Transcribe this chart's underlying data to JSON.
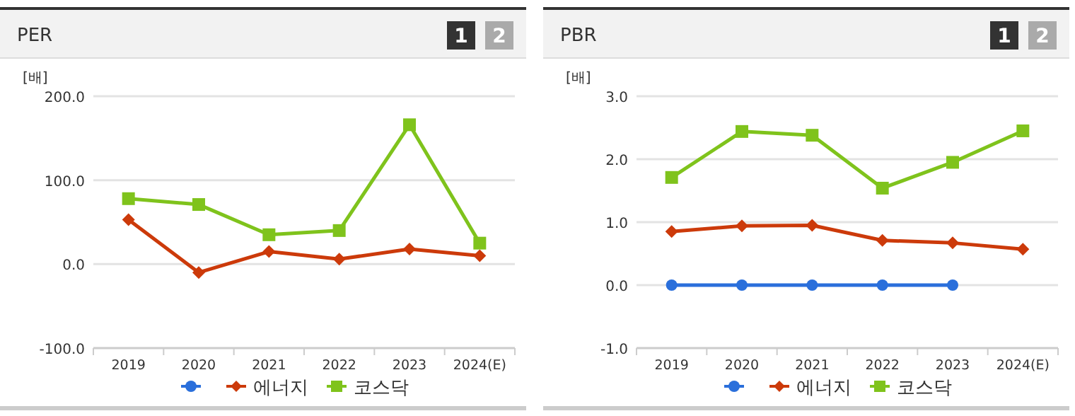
{
  "chart_data": [
    {
      "type": "line",
      "title": "PER",
      "ylabel": "[배]",
      "annotations": [
        "1",
        "2"
      ],
      "categories": [
        "2019",
        "2020",
        "2021",
        "2022",
        "2023",
        "2024(E)"
      ],
      "ylim": [
        -100,
        200
      ],
      "yticks": [
        {
          "value": -100,
          "label": "-100.0"
        },
        {
          "value": 0,
          "label": "0.0"
        },
        {
          "value": 100,
          "label": "100.0"
        },
        {
          "value": 200,
          "label": "200.0"
        }
      ],
      "grid": "y",
      "legend": "bottom",
      "series": [
        {
          "color": "#2a6fdb",
          "marker": "circle",
          "values": [
            null,
            null,
            null,
            null,
            null,
            null
          ]
        },
        {
          "name": "에너지",
          "color": "#cc3a0a",
          "marker": "diamond",
          "values": [
            53,
            -10,
            15,
            6,
            18,
            10
          ]
        },
        {
          "name": "코스닥",
          "color": "#7fc31c",
          "marker": "square",
          "values": [
            78,
            71,
            35,
            40,
            166,
            25
          ]
        }
      ]
    },
    {
      "type": "line",
      "title": "PBR",
      "ylabel": "[배]",
      "annotations": [
        "1",
        "2"
      ],
      "categories": [
        "2019",
        "2020",
        "2021",
        "2022",
        "2023",
        "2024(E)"
      ],
      "ylim": [
        -1,
        3
      ],
      "yticks": [
        {
          "value": -1,
          "label": "-1.0"
        },
        {
          "value": 0,
          "label": "0.0"
        },
        {
          "value": 1,
          "label": "1.0"
        },
        {
          "value": 2,
          "label": "2.0"
        },
        {
          "value": 3,
          "label": "3.0"
        }
      ],
      "grid": "y",
      "legend": "bottom",
      "series": [
        {
          "color": "#2a6fdb",
          "marker": "circle",
          "values": [
            0,
            0,
            0,
            0,
            0,
            null
          ]
        },
        {
          "name": "에너지",
          "color": "#cc3a0a",
          "marker": "diamond",
          "values": [
            0.85,
            0.94,
            0.95,
            0.71,
            0.67,
            0.57
          ]
        },
        {
          "name": "코스닥",
          "color": "#7fc31c",
          "marker": "square",
          "values": [
            1.71,
            2.44,
            2.38,
            1.54,
            1.95,
            2.45
          ]
        }
      ]
    }
  ]
}
